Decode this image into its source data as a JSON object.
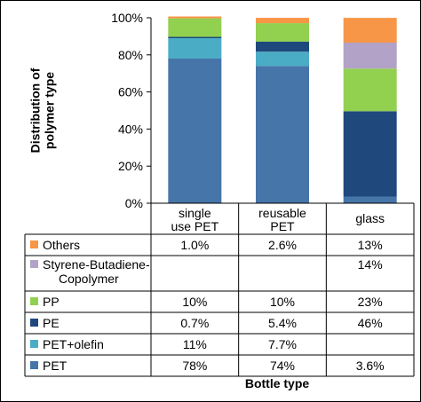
{
  "chart_data": {
    "type": "bar",
    "stacked": true,
    "xlabel": "Bottle type",
    "ylabel": "Distribution of polymer type",
    "ylabel_lines": [
      "Distribution of",
      "polymer type"
    ],
    "ylim": [
      0,
      100
    ],
    "yticks": [
      "0%",
      "20%",
      "40%",
      "60%",
      "80%",
      "100%"
    ],
    "categories": [
      "single use PET",
      "reusable PET",
      "glass"
    ],
    "category_lines": [
      [
        "single",
        "use PET"
      ],
      [
        "reusable",
        "PET"
      ],
      [
        "glass"
      ]
    ],
    "legend_placement": "data-table",
    "series": [
      {
        "name": "PET",
        "color": "#4675a9",
        "values": [
          78,
          74,
          3.6
        ],
        "labels": [
          "78%",
          "74%",
          "3.6%"
        ]
      },
      {
        "name": "PET+olefin",
        "color": "#4bacc6",
        "values": [
          11,
          7.7,
          0
        ],
        "labels": [
          "11%",
          "7.7%",
          ""
        ]
      },
      {
        "name": "PE",
        "color": "#1f497d",
        "values": [
          0.7,
          5.4,
          46
        ],
        "labels": [
          "0.7%",
          "5.4%",
          "46%"
        ]
      },
      {
        "name": "PP",
        "color": "#92d050",
        "values": [
          10,
          10,
          23
        ],
        "labels": [
          "10%",
          "10%",
          "23%"
        ]
      },
      {
        "name": "Styrene-Butadiene-Copolymer",
        "name_lines": [
          "Styrene-Butadiene-",
          "Copolymer"
        ],
        "color": "#b3a2c7",
        "values": [
          0,
          0,
          14
        ],
        "labels": [
          "",
          "",
          "14%"
        ]
      },
      {
        "name": "Others",
        "color": "#f79646",
        "values": [
          1.0,
          2.6,
          13
        ],
        "labels": [
          "1.0%",
          "2.6%",
          "13%"
        ]
      }
    ]
  }
}
